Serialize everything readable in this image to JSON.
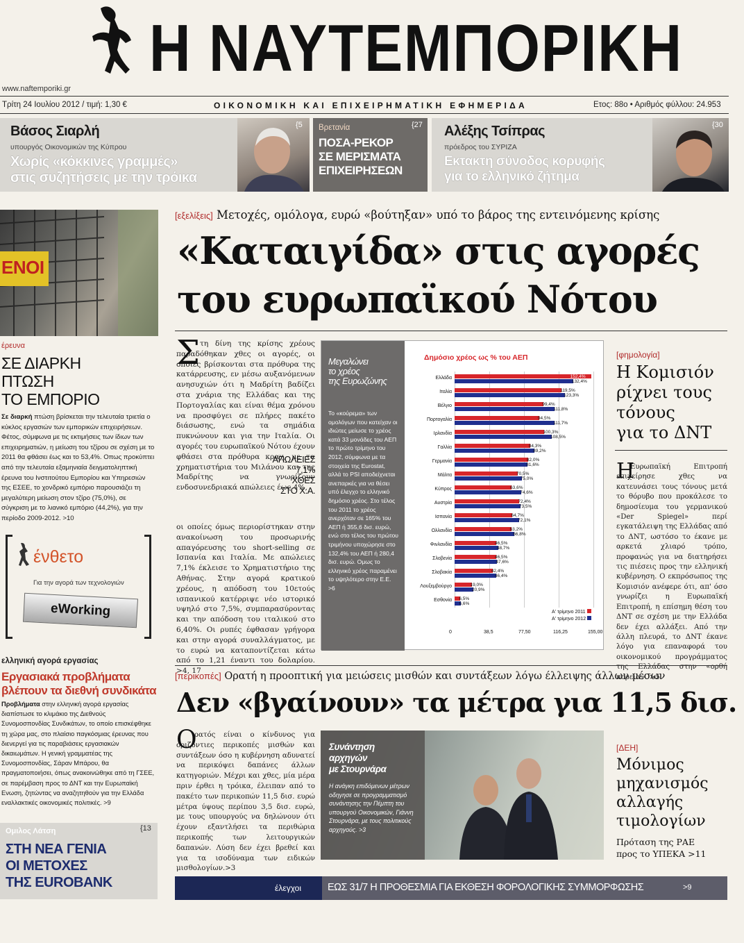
{
  "masthead": {
    "title": "Η ΝΑΥΤΕΜΠΟΡΙΚΗ",
    "website": "www.naftemporiki.gr",
    "date_price": "Τρίτη 24 Ιουλίου 2012 / τιμή: 1,30 €",
    "tagline": "ΟΙΚΟΝΟΜΙΚΗ ΚΑΙ ΕΠΙΧΕΙΡΗΜΑΤΙΚΗ ΕΦΗΜΕΡΙΔΑ",
    "issue": "Ετος: 88ο • Αριθμός φύλλου: 24.953"
  },
  "teasers": [
    {
      "name": "Βάσος Σιαρλή",
      "role": "υπουργός Οικονομικών της Κύπρου",
      "headline_1": "Χωρίς «κόκκινες γραμμές»",
      "headline_2": "στις συζητήσεις με την τρόικα",
      "page": "{5"
    },
    {
      "kicker": "Βρετανία",
      "headline_1": "ΠΟΣΑ-ΡΕΚΟΡ",
      "headline_2": "ΣΕ ΜΕΡΙΣΜΑΤΑ",
      "headline_3": "ΕΠΙΧΕΙΡΗΣΕΩΝ",
      "page": "{27"
    },
    {
      "name": "Αλέξης Τσίπρας",
      "role": "πρόεδρος του ΣΥΡΙΖΑ",
      "headline_1": "Εκτακτη σύνοδος κορυφής",
      "headline_2": "για το ελληνικό ζήτημα",
      "page": "{30"
    }
  ],
  "left_col": {
    "photo_sign": "ΕΝΟΙ",
    "research_tag": "έρευνα",
    "research_title": [
      "ΣΕ ΔΙΑΡΚΗ",
      "ΠΤΩΣΗ",
      "ΤΟ ΕΜΠΟΡΙΟ"
    ],
    "research_lead": "Σε διαρκή",
    "research_body": " πτώση βρίσκεται την τελευταία τριετία ο κύκλος εργασιών των εμπορικών επιχειρήσεων. Φέτος, σύμφωνα με τις εκτιμήσεις των ίδιων των επιχειρηματιών, η μείωση του τζίρου σε σχέση με το 2011 θα φθάσει έως και το 53,4%. Οπως προκύπτει από την τελευταία εξαμηνιαία δειγματοληπτική έρευνα του Ινστιτούτου Εμπορίου και Υπηρεσιών της ΕΣΕΕ, το χονδρικό εμπόριο παρουσιάζει τη μεγαλύτερη μείωση στον τζίρο (75,0%), σε σύγκριση με το λιανικό εμπόριο (44,2%), για την περίοδο 2009-2012. >10",
    "insert_title": "ένθετο",
    "insert_sub": "Για την αγορά των τεχνολογιών",
    "insert_badge": "eWorking",
    "labour_tag": "ελληνική αγορά εργασίας",
    "labour_title_1": "Εργασιακά προβλήματα",
    "labour_title_2": "βλέπουν τα διεθνή συνδικάτα",
    "labour_lead": "Προβλήματα",
    "labour_body": " στην ελληνική αγορά εργασίας διαπίστωσε το κλιμάκιο της Διεθνούς Συνομοσπονδίας Συνδικάτων, το οποίο επισκέφθηκε τη χώρα μας, στο πλαίσιο παγκόσμιας έρευνας που διενεργεί για τις παραβιάσεις εργασιακών δικαιωμάτων. Η γενική γραμματέας της Συνομοσπονδίας, Σάραν Μπάρου, θα πραγματοποιήσει, όπως ανακοινώθηκε από τη ΓΣΕΕ, σε παρέμβαση προς το ΔΝΤ και την Ευρωπαϊκή Ενωση, ζητώντας να αναζητηθούν για την Ελλάδα εναλλακτικές οικονομικές πολιτικές. >9",
    "latsis_kicker": "Ομιλος Λάτση",
    "latsis_page": "{13",
    "latsis_title": [
      "ΣΤΗ ΝΕΑ ΓΕΝΙΑ",
      "ΟΙ ΜΕΤΟΧΕΣ",
      "ΤΗΣ EUROBANK"
    ]
  },
  "main": {
    "kicker_tag": "[εξελίξεις]",
    "kicker": "Μετοχές, ομόλογα, ευρώ «βούτηξαν» υπό το βάρος της εντεινόμενης κρίσης",
    "headline_1": "«Καταιγίδα» στις αγορές",
    "headline_2": "του ευρωπαϊκού Νότου",
    "dropcap": "Σ",
    "body_top": "τη δίνη της κρίσης χρέους παραδόθηκαν χθες οι αγορές, οι οποίες βρίσκονται στα πρόθυρα της κατάρρευσης, εν μέσω αυξανόμενων ανησυχιών ότι η Μαδρίτη βαδίζει στα χνάρια της Ελλάδας και της Πορτογαλίας και είναι θέμα χρόνου να προσφύγει σε πλήρες πακέτο διάσωσης, ενώ τα σημάδια πυκνώνουν και για την Ιταλία. Οι αγορές του ευρωπαϊκού Νότου έχουν φθάσει στα πρόθυρα κραχ, με τα χρηματιστήρια του Μιλάνου και της Μαδρίτης να γνωρίζουν ενδοσυνεδριακά απώλειες έως 4%,",
    "body_bottom": "οι οποίες όμως περιορίστηκαν στην ανακοίνωση του προσωρινής απαγόρευσης του short-selling σε Ισπανία και Ιταλία. Με απώλειες 7,1% έκλεισε το Χρηματιστήριο της Αθήνας. Στην αγορά κρατικού χρέους, η απόδοση του 10ετούς ισπανικού κατέρριψε νέο ιστορικό υψηλό στο 7,5%, συμπαρασύροντας και την απόδοση του ιταλικού στο 6,40%. Οι ρυπές έφθασαν γρήγορα και στην αγορά συναλλάγματος, με το ευρώ να καταποντίζεται κάτω από το 1,21 έναντι του δολαρίου. >4, 17",
    "pullquote": [
      "ΑΠΩΛΕΙΕΣ",
      "7,1%",
      "ΧΘΕΣ",
      "ΣΤΟ Χ.Α."
    ]
  },
  "chart_box": {
    "title": [
      "Μεγαλώνει",
      "το χρέος",
      "της Ευρωζώνης"
    ],
    "text": "Το «κούρεμα» των ομολόγων που κατείχαν οι ιδιώτες μείωσε το χρέος κατά 33 μονάδες του ΑΕΠ το πρώτο τρίμηνο του 2012, σύμφωνα με τα στοιχεία της Eurostat, αλλά το PSI αποδείχνεται ανεπαρκές για να θέσει υπό έλεγχο το ελληνικό δημόσιο χρέος. Στο τέλος του 2011 το χρέος ανερχόταν σε 165% του ΑΕΠ ή 355,6 δισ. ευρώ, ενώ στο τέλος του πρώτου τριμήνου υποχώρησε στο 132,4% του ΑΕΠ ή 280,4 δισ. ευρώ. Ομως το ελληνικό χρέος παραμένει το υψηλότερο στην Ε.Ε. >6"
  },
  "chart_data": {
    "type": "bar",
    "title": "Δημόσιο χρέος ως % του ΑΕΠ",
    "categories": [
      "Ελλάδα",
      "Ιταλία",
      "Βέλγιο",
      "Πορτογαλία",
      "Ιρλανδία",
      "Γαλλία",
      "Γερμανία",
      "Μάλτα",
      "Κύπρος",
      "Αυστρία",
      "Ισπανία",
      "Ολλανδία",
      "Φινλανδία",
      "Σλοβενία",
      "Σλοβακία",
      "Λουξεμβούργο",
      "Εσθονία"
    ],
    "series": [
      {
        "name": "Α' τρίμηνο 2011",
        "color": "#d7262b",
        "values": [
          152.4,
          119.5,
          99.4,
          94.5,
          100.3,
          84.3,
          82.0,
          70.5,
          63.6,
          72.4,
          64.7,
          63.2,
          46.5,
          46.5,
          42.4,
          19.0,
          6.5
        ],
        "labels": [
          "152,4%",
          "119,5%",
          "99,4%",
          "94,5%",
          "100,3%",
          "84,3%",
          "82,0%",
          "70,5%",
          "63,6%",
          "72,4%",
          "64,7%",
          "63,2%",
          "46,5%",
          "46,5%",
          "42,4%",
          "19,0%",
          "6,5%"
        ]
      },
      {
        "name": "Α' τρίμηνο 2012",
        "color": "#1f2f8f",
        "values": [
          132.4,
          123.3,
          111.8,
          111.7,
          108.5,
          89.2,
          81.6,
          75.0,
          74.6,
          73.5,
          72.1,
          66.8,
          48.7,
          47.6,
          46.4,
          20.9,
          6.6
        ],
        "labels": [
          "132,4%",
          "123,3%",
          "111,8%",
          "111,7%",
          "108,5%",
          "89,2%",
          "81,6%",
          "75,0%",
          "74,6%",
          "73,5%",
          "72,1%",
          "66,8%",
          "48,7%",
          "47,6%",
          "46,4%",
          "20,9%",
          "6,6%"
        ]
      }
    ],
    "xlim": [
      0,
      155
    ],
    "xticks": [
      "0",
      "38,5",
      "77,50",
      "116,25",
      "155,00"
    ],
    "legend": "bottom-right",
    "grid": true
  },
  "right_col": {
    "tag": "[φημολογία]",
    "title": [
      "Η Κομισιόν",
      "ρίχνει τους",
      "τόνους",
      "για το ΔΝΤ"
    ],
    "dropcap": "Η",
    "body": "Ευρωπαϊκή Επιτροπή επιχείρησε χθες να κατευνάσει τους τόνους μετά το θόρυβο που προκάλεσε το δημοσίευμα του γερμανικού «Der Spiegel» περί εγκατάλειψη της Ελλάδας από το ΔΝΤ, ωστόσο το έκανε με αρκετά χλιαρό τρόπο, προφανώς για να διατηρήσει τις πιέσεις προς την ελληνική κυβέρνηση. Ο εκπρόσωπος της Κομισιόν ανέφερε ότι, απ' όσο γνωρίζει η Ευρωπαϊκή Επιτροπή, η επίσημη θέση του ΔΝΤ σε σχέση με την Ελλάδα δεν έχει αλλάξει. Από την άλλη πλευρά, το ΔΝΤ έκανε λόγο για επαναφορά του οικονομικού προγράμματος της Ελλάδας στην «ορθή πορεία». >5"
  },
  "second": {
    "kicker_tag": "[περικοπές]",
    "kicker": "Ορατή η προοπτική για μειώσεις μισθών και συντάξεων λόγω έλλειψης άλλων μέσων",
    "headline": "Δεν «βγαίνουν» τα μέτρα για 11,5 δισ.",
    "dropcap": "Ο",
    "body": "ρατός είναι ο κίνδυνος για οριζόντιες περικοπές μισθών και συντάξεων όσο η κυβέρνηση αδυνατεί να περικόψει δαπάνες άλλων κατηγοριών. Μέχρι και χθες, μία μέρα πριν έρθει η τρόικα, έλειπαν από το πακέτο των περικοπών 11,5 δισ. ευρώ μέτρα ύψους περίπου 3,5 δισ. ευρώ, με τους υπουργούς να δηλώνουν ότι έχουν εξαντλήσει τα περιθώρια περικοπής των λειτουργικών δαπανών. Λύση δεν έχει βρεθεί και για τα ισοδύναμα των ειδικών μισθολογίων.>3",
    "photo_box_title": [
      "Συνάντηση",
      "αρχηγών",
      "με Στουρνάρα"
    ],
    "photo_box_text": "Η ανάγκη επιδόμενων μέτρων οδηγησε σε προγραμματισμό συνάντησης την Πέμπτη του υπουργού Οικονομικών, Γιάννη Στουρνάρα, με τους πολιτικούς αρχηγούς. >3"
  },
  "dei": {
    "tag": "[ΔΕΗ]",
    "title": [
      "Μόνιμος",
      "μηχανισμός",
      "αλλαγής",
      "τιμολογίων"
    ],
    "sub": [
      "Πρόταση της ΡΑΕ",
      "προς το ΥΠΕΚΑ >11"
    ]
  },
  "footer_bar": {
    "tag": "έλεγχοι",
    "text": "ΕΩΣ 31/7 Η ΠΡΟΘΕΣΜΙΑ ΓΙΑ ΕΚΘΕΣΗ ΦΟΡΟΛΟΓΙΚΗΣ ΣΥΜΜΟΡΦΩΣΗΣ",
    "ref": ">9"
  }
}
